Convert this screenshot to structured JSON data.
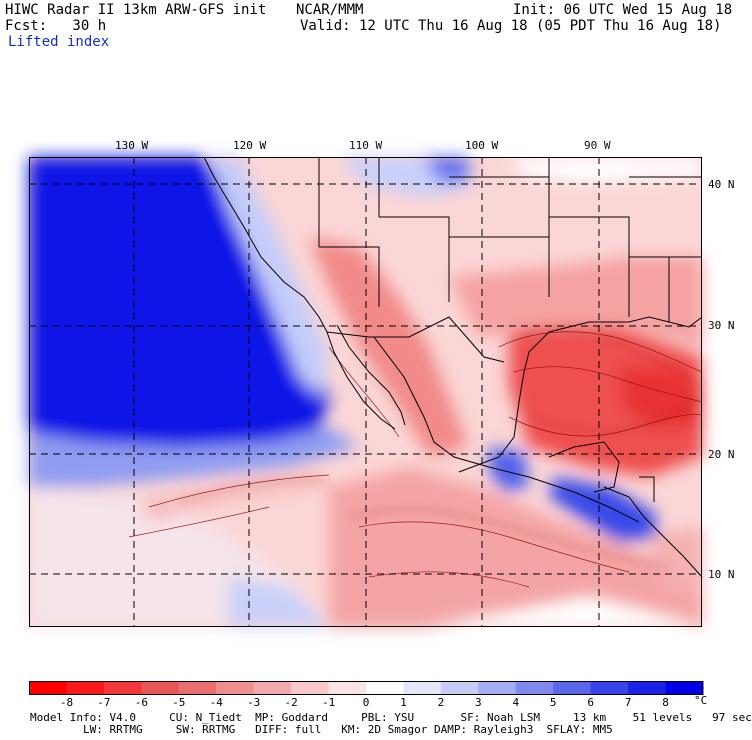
{
  "header": {
    "title_left": "HIWC Radar II 13km ARW-GFS init",
    "title_center": "NCAR/MMM",
    "init": "Init: 06 UTC Wed 15 Aug 18",
    "fcst": "Fcst:   30 h",
    "valid": "Valid: 12 UTC Thu 16 Aug 18 (05 PDT Thu 16 Aug 18)",
    "field": "Lifted index"
  },
  "map": {
    "lon_labels": [
      "130 W",
      "120 W",
      "110 W",
      "100 W",
      "90 W"
    ],
    "lat_labels": [
      "40 N",
      "30 N",
      "20 N",
      "10 N"
    ],
    "colors": {
      "deep_blue": "#0a14e6",
      "mid_blue": "#5a6cf0",
      "light_blue": "#c8d0fa",
      "white": "#ffffff",
      "light_red": "#fbd0d0",
      "mid_red": "#f59090",
      "strong_red": "#ee4a4a",
      "boundary": "#000000",
      "contour": "#8b0000"
    }
  },
  "colorbar": {
    "ticks": [
      "-8",
      "-7",
      "-6",
      "-5",
      "-4",
      "-3",
      "-2",
      "-1",
      "0",
      "1",
      "2",
      "3",
      "4",
      "5",
      "6",
      "7",
      "8"
    ],
    "unit": "°C",
    "colors": [
      "#ff0000",
      "#f81a1a",
      "#f23838",
      "#ec5656",
      "#e87070",
      "#ee8e8e",
      "#f4aaaa",
      "#f9c8c8",
      "#fde4e4",
      "#ffffff",
      "#e4e6fc",
      "#c6cbf8",
      "#a4acf3",
      "#8089ee",
      "#5a66ea",
      "#3944e6",
      "#1a24e6",
      "#0000e6"
    ]
  },
  "footer": {
    "line1": "Model Info: V4.0     CU: N_Tiedt  MP: Goddard     PBL: YSU       SF: Noah LSM     13 km    51 levels   97 sec",
    "line2": "        LW: RRTMG     SW: RRTMG   DIFF: full   KM: 2D Smagor DAMP: Rayleigh3  SFLAY: MM5"
  }
}
